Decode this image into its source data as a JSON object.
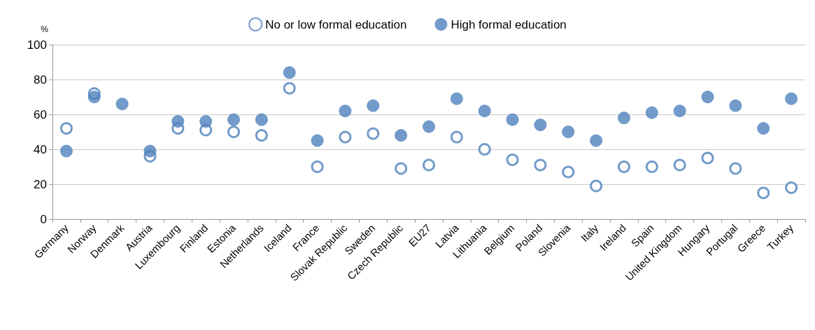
{
  "chart_data": {
    "type": "scatter",
    "ylabel": "%",
    "categories": [
      "Germany",
      "Norway",
      "Denmark",
      "Austria",
      "Luxembourg",
      "Finland",
      "Estonia",
      "Netherlands",
      "Iceland",
      "France",
      "Slovak Republic",
      "Sweden",
      "Czech Republic",
      "EU27",
      "Latvia",
      "Lithuania",
      "Belgium",
      "Poland",
      "Slovenia",
      "Italy",
      "Ireland",
      "Spain",
      "United Kingdom",
      "Hungary",
      "Portugal",
      "Greece",
      "Turkey"
    ],
    "series": [
      {
        "name": "No or low formal education",
        "color": "#4f81bd",
        "values": [
          52,
          72,
          null,
          36,
          52,
          51,
          50,
          48,
          75,
          30,
          47,
          49,
          29,
          31,
          47,
          40,
          34,
          31,
          27,
          19,
          30,
          30,
          31,
          35,
          29,
          15,
          18
        ]
      },
      {
        "name": "High formal education",
        "color": "#4f81bd",
        "values": [
          39,
          70,
          66,
          39,
          56,
          56,
          57,
          57,
          84,
          45,
          62,
          65,
          48,
          53,
          69,
          62,
          57,
          54,
          50,
          45,
          58,
          61,
          62,
          70,
          65,
          52,
          69
        ]
      }
    ],
    "ylim": [
      0,
      100
    ],
    "yticks": [
      0,
      20,
      40,
      60,
      80,
      100
    ],
    "grid": "y",
    "legend": "top",
    "marker": "circle"
  }
}
